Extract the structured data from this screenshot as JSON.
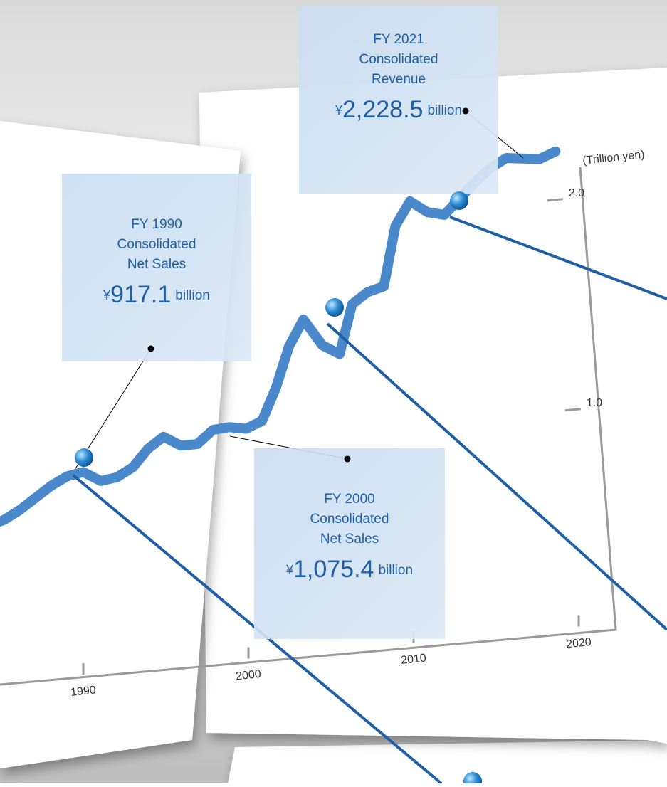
{
  "chart_data": {
    "type": "line",
    "y_axis_label": "(Trillion yen)",
    "x": [
      1985,
      1986,
      1987,
      1988,
      1989,
      1990,
      1991,
      1992,
      1993,
      1994,
      1995,
      1996,
      1997,
      1998,
      1999,
      2000,
      2001,
      2002,
      2003,
      2004,
      2005,
      2006,
      2007,
      2008,
      2009,
      2010,
      2011,
      2012,
      2013,
      2014,
      2015,
      2016,
      2017,
      2018,
      2019,
      2020,
      2021
    ],
    "series": [
      {
        "color": "#4a88cc",
        "values": [
          0.72,
          0.74,
          0.78,
          0.83,
          0.88,
          0.9171,
          0.93,
          0.88,
          0.89,
          0.93,
          1.01,
          1.06,
          1.01,
          1.01,
          1.07,
          1.0754,
          1.06,
          1.09,
          1.24,
          1.43,
          1.55,
          1.42,
          1.37,
          1.6,
          1.65,
          1.67,
          1.95,
          2.06,
          2.0,
          1.98,
          2.05,
          2.12,
          2.18,
          2.22,
          2.21,
          2.2,
          2.2285
        ]
      }
    ],
    "xlim": [
      1985,
      2022
    ],
    "ylim": [
      0,
      2.15
    ],
    "xticks": [
      1990,
      2000,
      2010,
      2020
    ],
    "yticks": [
      {
        "value": 1,
        "label": "1.0"
      },
      {
        "value": 2,
        "label": "2.0"
      }
    ],
    "annotations": [
      {
        "lines": [
          "FY 2021",
          "Consolidated",
          "Revenue"
        ],
        "currency": "¥",
        "amount": "2,228.5",
        "unit": "billion"
      },
      {
        "lines": [
          "FY 1990",
          "Consolidated",
          "Net Sales"
        ],
        "currency": "¥",
        "amount": "917.1",
        "unit": "billion"
      },
      {
        "lines": [
          "FY 2000",
          "Consolidated",
          "Net Sales"
        ],
        "currency": "¥",
        "amount": "1,075.4",
        "unit": "billion"
      }
    ]
  }
}
